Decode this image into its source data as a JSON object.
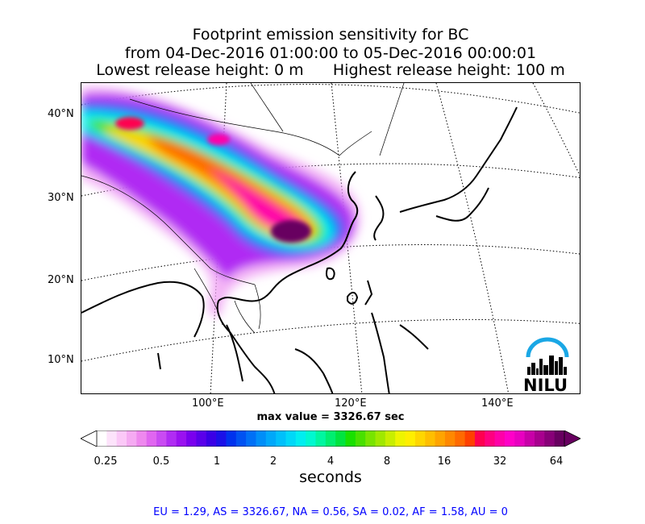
{
  "title": {
    "line1": "Footprint emission sensitivity for BC",
    "line2": "from 04-Dec-2016 01:00:00 to 05-Dec-2016 00:00:01",
    "line3": "Lowest release height: 0 m      Highest release height: 100 m"
  },
  "map": {
    "lat_labels": [
      "40°N",
      "30°N",
      "20°N",
      "10°N"
    ],
    "lon_labels": [
      "100°E",
      "120°E",
      "140°E"
    ],
    "logo_text": "NILU",
    "logo_color": "#1aa7e5"
  },
  "max_value": "max value = 3326.67 sec",
  "colorbar": {
    "ticks": [
      "0.25",
      "0.5",
      "1",
      "2",
      "4",
      "8",
      "16",
      "32",
      "64"
    ],
    "units": "seconds",
    "colors": [
      "#ffffff",
      "#fde3fb",
      "#fbc8f7",
      "#f5aaf2",
      "#ee88ee",
      "#e066f0",
      "#c94bf2",
      "#b02cf3",
      "#9a11f0",
      "#7a00ee",
      "#5a00ea",
      "#3a00e6",
      "#1b10e8",
      "#0032ee",
      "#0052f2",
      "#0070f6",
      "#008ef8",
      "#00a8fa",
      "#00c0fb",
      "#00d8f8",
      "#00eef0",
      "#00f8d0",
      "#00f6a0",
      "#00ee70",
      "#00e440",
      "#18e000",
      "#48e000",
      "#78e400",
      "#a0e800",
      "#c8ee00",
      "#eef400",
      "#ffee00",
      "#ffd600",
      "#ffbe00",
      "#ffa400",
      "#ff8800",
      "#ff6a00",
      "#ff4000",
      "#ff0050",
      "#ff0080",
      "#ff00a8",
      "#ff00c8",
      "#e800c0",
      "#c800a8",
      "#a8008e",
      "#880078",
      "#680060"
    ]
  },
  "stats": "EU = 1.29,  AS = 3326.67,  NA = 0.56,  SA = 0.02,  AF = 1.58,  AU = 0"
}
